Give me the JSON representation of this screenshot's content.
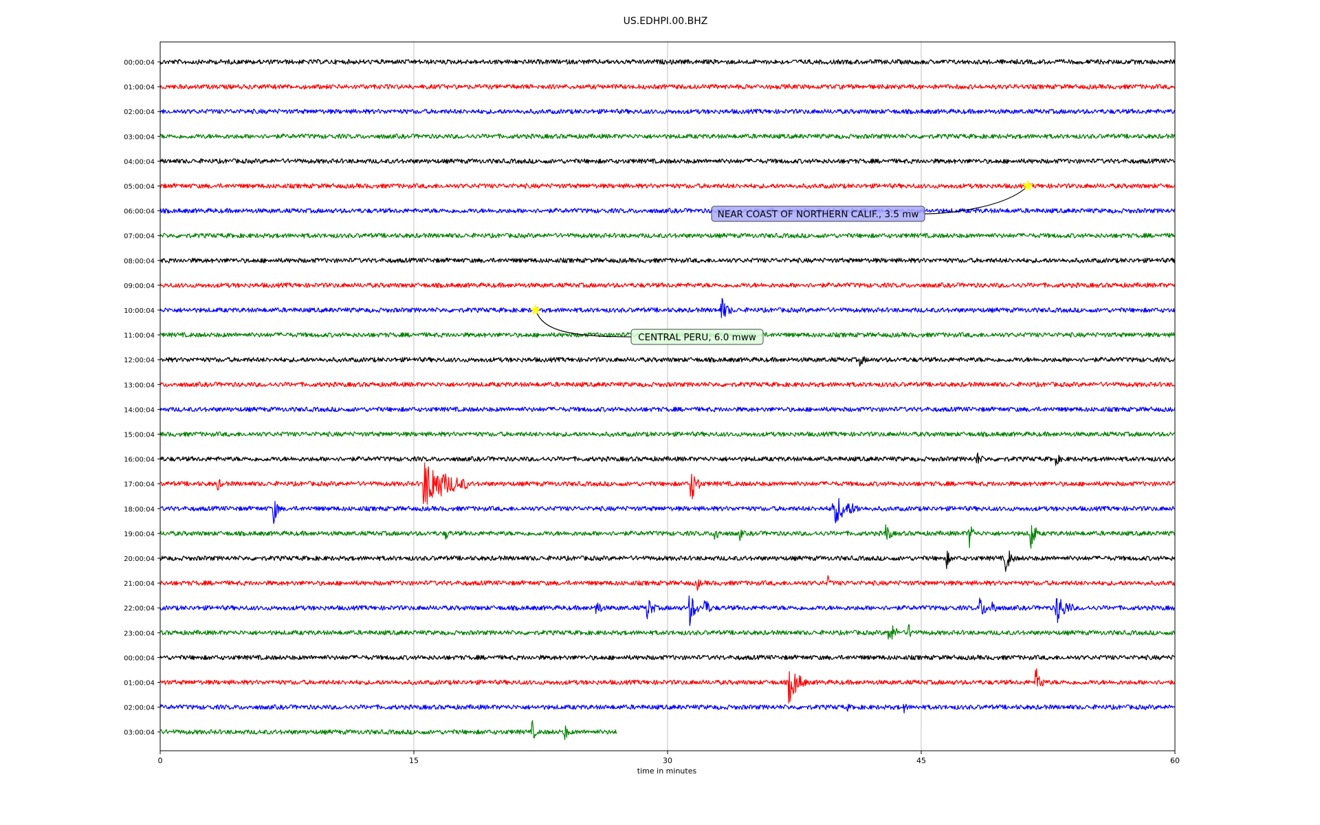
{
  "chart_data": {
    "type": "line",
    "title": "US.EDHPI.00.BHZ",
    "xlabel": "time in minutes",
    "ylabel": "",
    "xlim": [
      0,
      60
    ],
    "xticks": [
      0,
      15,
      30,
      45,
      60
    ],
    "xtick_labels": [
      "0",
      "15",
      "30",
      "45",
      "60"
    ],
    "grid": "vertical",
    "trace_colors": [
      "#000000",
      "#ff0000",
      "#0000ff",
      "#008000"
    ],
    "rows": [
      {
        "label": "00:00:04",
        "end": 60,
        "events": []
      },
      {
        "label": "01:00:04",
        "end": 60,
        "events": []
      },
      {
        "label": "02:00:04",
        "end": 60,
        "events": []
      },
      {
        "label": "03:00:04",
        "end": 60,
        "events": []
      },
      {
        "label": "04:00:04",
        "end": 60,
        "events": []
      },
      {
        "label": "05:00:04",
        "end": 60,
        "events": []
      },
      {
        "label": "06:00:04",
        "end": 60,
        "events": []
      },
      {
        "label": "07:00:04",
        "end": 60,
        "events": []
      },
      {
        "label": "08:00:04",
        "end": 60,
        "events": []
      },
      {
        "label": "09:00:04",
        "end": 60,
        "events": []
      },
      {
        "label": "10:00:04",
        "end": 60,
        "events": [
          [
            33.2,
            0.6,
            1.2
          ]
        ]
      },
      {
        "label": "11:00:04",
        "end": 60,
        "events": []
      },
      {
        "label": "12:00:04",
        "end": 60,
        "events": [
          [
            41.4,
            0.4,
            0.5
          ]
        ]
      },
      {
        "label": "13:00:04",
        "end": 60,
        "events": []
      },
      {
        "label": "14:00:04",
        "end": 60,
        "events": []
      },
      {
        "label": "15:00:04",
        "end": 60,
        "events": []
      },
      {
        "label": "16:00:04",
        "end": 60,
        "events": [
          [
            48.3,
            0.4,
            0.6
          ],
          [
            53.0,
            0.3,
            0.5
          ]
        ]
      },
      {
        "label": "17:00:04",
        "end": 60,
        "events": [
          [
            3.4,
            0.3,
            0.6
          ],
          [
            15.6,
            2.6,
            2.6
          ],
          [
            31.4,
            0.6,
            1.8
          ]
        ]
      },
      {
        "label": "18:00:04",
        "end": 60,
        "events": [
          [
            6.7,
            0.4,
            1.6
          ],
          [
            39.8,
            1.6,
            1.6
          ]
        ]
      },
      {
        "label": "19:00:04",
        "end": 60,
        "events": [
          [
            16.9,
            0.3,
            0.5
          ],
          [
            32.8,
            0.4,
            1.0
          ],
          [
            34.3,
            0.2,
            0.6
          ],
          [
            42.9,
            0.4,
            1.2
          ],
          [
            47.8,
            0.4,
            1.7
          ],
          [
            51.5,
            0.4,
            2.0
          ]
        ]
      },
      {
        "label": "20:00:04",
        "end": 60,
        "events": [
          [
            46.5,
            0.3,
            0.9
          ],
          [
            50.0,
            0.5,
            1.5
          ]
        ]
      },
      {
        "label": "21:00:04",
        "end": 60,
        "events": [
          [
            31.8,
            0.2,
            0.6
          ],
          [
            39.5,
            0.2,
            0.6
          ]
        ]
      },
      {
        "label": "22:00:04",
        "end": 60,
        "events": [
          [
            25.8,
            0.4,
            1.0
          ],
          [
            28.8,
            0.5,
            1.3
          ],
          [
            31.3,
            0.6,
            1.8
          ],
          [
            32.2,
            0.4,
            1.2
          ],
          [
            48.5,
            0.6,
            1.0
          ],
          [
            49.2,
            0.3,
            1.1
          ],
          [
            53.0,
            1.0,
            1.6
          ]
        ]
      },
      {
        "label": "23:00:04",
        "end": 60,
        "events": [
          [
            43.1,
            0.6,
            1.2
          ],
          [
            44.2,
            0.4,
            1.0
          ]
        ]
      },
      {
        "label": "00:00:04",
        "end": 60,
        "events": []
      },
      {
        "label": "01:00:04",
        "end": 60,
        "events": [
          [
            37.2,
            1.0,
            2.0
          ],
          [
            51.8,
            0.5,
            1.4
          ]
        ]
      },
      {
        "label": "02:00:04",
        "end": 60,
        "events": [
          [
            40.6,
            0.2,
            0.4
          ],
          [
            44.0,
            0.2,
            0.4
          ]
        ]
      },
      {
        "label": "03:00:04",
        "end": 27,
        "events": [
          [
            22.0,
            0.3,
            1.1
          ],
          [
            23.9,
            0.4,
            0.8
          ]
        ]
      }
    ],
    "annotations": [
      {
        "text": "NEAR COAST OF NORTHERN CALIF., 3.5 mw",
        "row": 5,
        "x": 51.3,
        "box_color": "#aaaaff"
      },
      {
        "text": "CENTRAL PERU, 6.0 mww",
        "row": 10,
        "x": 22.2,
        "box_color": "#ddffdd"
      }
    ],
    "marker_color": "#ffff00"
  }
}
